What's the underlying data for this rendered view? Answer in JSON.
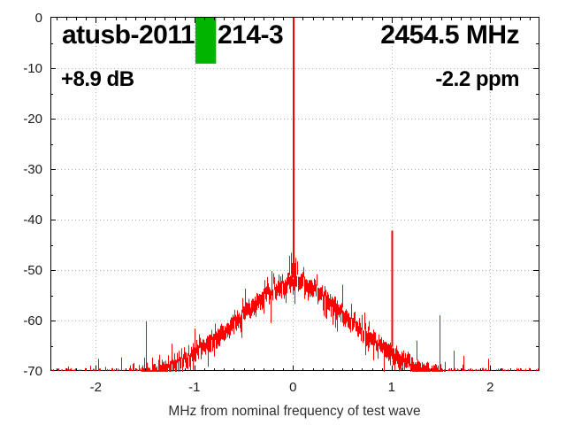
{
  "annotations": {
    "run_label": "atusb-2011",
    "board_label": "214-3",
    "center_frequency": "2454.5 MHz",
    "power_offset": "+8.9 dB",
    "frequency_error": "-2.2 ppm"
  },
  "chart_data": {
    "type": "line",
    "title": "",
    "xlabel": "MHz from nominal frequency of test wave",
    "ylabel": "",
    "xlim": [
      -2.46,
      2.49
    ],
    "ylim": [
      -70,
      0
    ],
    "x_major_ticks": [
      -2,
      -1,
      0,
      1,
      2
    ],
    "x_tick_labels": [
      "-2",
      "-1",
      "0",
      "1",
      "2"
    ],
    "x_minor_step": 0.1,
    "y_major_ticks": [
      0,
      -10,
      -20,
      -30,
      -40,
      -50,
      -60,
      -70
    ],
    "y_tick_labels": [
      "0",
      "-10",
      "-20",
      "-30",
      "-40",
      "-50",
      "-60",
      "-70"
    ],
    "y_minor_step": 5,
    "grid": "dotted",
    "grid_color": "#b0b0b0",
    "axis_color": "#000000",
    "trace_color": "#ff0000",
    "noise_floor_db": -70,
    "band_thickness_db": 2.2,
    "carrier": {
      "x_mhz": 0.0,
      "peak_db": 0,
      "base_db": -50.5
    },
    "pass_indicator": {
      "x0_mhz": -0.99,
      "x1_mhz": -0.78,
      "top_db": 0,
      "bottom_db": -9.1,
      "color": "#00b400"
    },
    "noise_envelope_db": [
      [
        -2.46,
        -75
      ],
      [
        -1.78,
        -73
      ],
      [
        -1.7,
        -70.6
      ],
      [
        -1.6,
        -70.1
      ],
      [
        -1.5,
        -69.6
      ],
      [
        -1.4,
        -69.0
      ],
      [
        -1.3,
        -68.3
      ],
      [
        -1.2,
        -67.4
      ],
      [
        -1.1,
        -66.4
      ],
      [
        -1.0,
        -65.1
      ],
      [
        -0.9,
        -63.9
      ],
      [
        -0.8,
        -62.5
      ],
      [
        -0.7,
        -60.9
      ],
      [
        -0.6,
        -59.2
      ],
      [
        -0.5,
        -57.4
      ],
      [
        -0.4,
        -55.7
      ],
      [
        -0.3,
        -54.0
      ],
      [
        -0.2,
        -52.8
      ],
      [
        -0.1,
        -51.8
      ],
      [
        -0.05,
        -51.1
      ],
      [
        0.0,
        -50.6
      ],
      [
        0.05,
        -51.0
      ],
      [
        0.1,
        -51.6
      ],
      [
        0.15,
        -52.0
      ],
      [
        0.2,
        -52.6
      ],
      [
        0.3,
        -53.8
      ],
      [
        0.4,
        -55.7
      ],
      [
        0.5,
        -57.4
      ],
      [
        0.6,
        -59.2
      ],
      [
        0.7,
        -60.9
      ],
      [
        0.8,
        -62.5
      ],
      [
        0.9,
        -64.0
      ],
      [
        1.0,
        -65.2
      ],
      [
        1.1,
        -66.4
      ],
      [
        1.2,
        -67.4
      ],
      [
        1.3,
        -68.3
      ],
      [
        1.4,
        -69.0
      ],
      [
        1.5,
        -69.6
      ],
      [
        1.6,
        -70.1
      ],
      [
        1.7,
        -70.6
      ],
      [
        1.78,
        -73
      ],
      [
        2.49,
        -75
      ]
    ],
    "spurs_db": [
      [
        -1.98,
        -67.6
      ],
      [
        -1.9,
        -69.2
      ],
      [
        -1.74,
        -67.3
      ],
      [
        -1.62,
        -68.4
      ],
      [
        -1.56,
        -68.8
      ],
      [
        -1.49,
        -60.2
      ],
      [
        -1.36,
        -66.8
      ],
      [
        -1.23,
        -64.6
      ],
      [
        -1.0,
        -61.6
      ],
      [
        -0.74,
        -61.2
      ],
      [
        -0.49,
        -53.7
      ],
      [
        -0.15,
        -50.9
      ],
      [
        -0.04,
        -47.2
      ],
      [
        -0.02,
        -46.6
      ],
      [
        0.02,
        -47.6
      ],
      [
        0.04,
        -48.3
      ],
      [
        0.1,
        -50.4
      ],
      [
        0.5,
        -52.9
      ],
      [
        0.77,
        -60.2
      ],
      [
        1.0,
        -42.2
      ],
      [
        1.25,
        -64.0
      ],
      [
        1.49,
        -59.0
      ],
      [
        1.63,
        -66.0
      ],
      [
        1.73,
        -67.0
      ],
      [
        1.98,
        -67.6
      ]
    ]
  }
}
